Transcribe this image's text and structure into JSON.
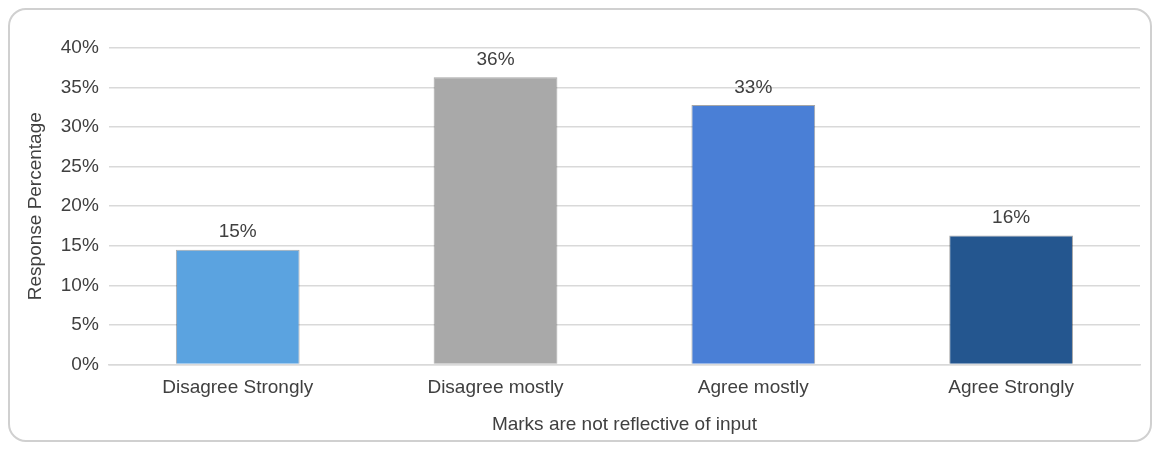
{
  "chart_data": {
    "type": "bar",
    "xlabel": "Marks are not reflective of input",
    "ylabel": "Response Percentage",
    "categories": [
      "Disagree Strongly",
      "Disagree mostly",
      "Agree mostly",
      "Agree Strongly"
    ],
    "values": [
      14.5,
      36.3,
      32.8,
      16.3
    ],
    "value_labels": [
      "15%",
      "36%",
      "33%",
      "16%"
    ],
    "colors": [
      "#5ba3e0",
      "#a9a9a9",
      "#4a7fd6",
      "#24568f"
    ],
    "ylim": [
      0,
      40
    ],
    "yticks": [
      {
        "value": 0,
        "label": "0%"
      },
      {
        "value": 5,
        "label": "5%"
      },
      {
        "value": 10,
        "label": "10%"
      },
      {
        "value": 15,
        "label": "15%"
      },
      {
        "value": 20,
        "label": "20%"
      },
      {
        "value": 25,
        "label": "25%"
      },
      {
        "value": 30,
        "label": "30%"
      },
      {
        "value": 35,
        "label": "35%"
      },
      {
        "value": 40,
        "label": "40%"
      }
    ],
    "grid": "y",
    "legend": false
  }
}
